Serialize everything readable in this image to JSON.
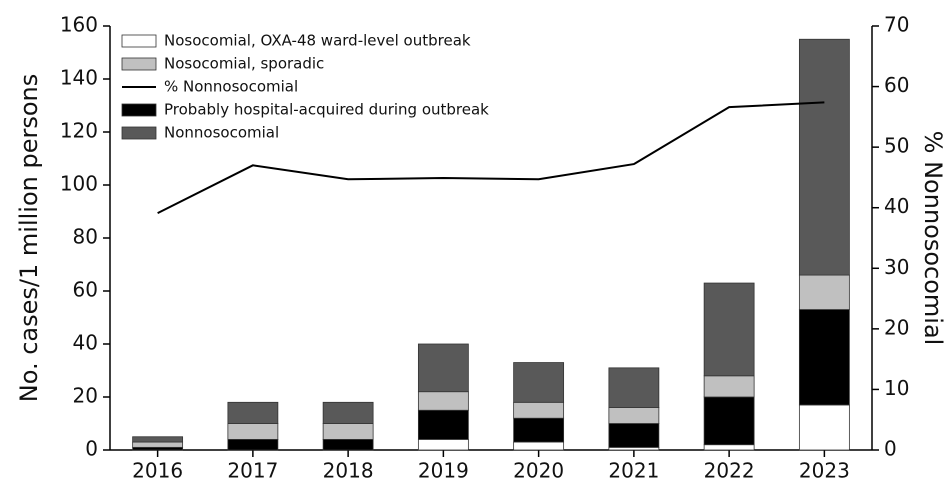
{
  "chart_data": {
    "type": "bar",
    "categories": [
      "2016",
      "2017",
      "2018",
      "2019",
      "2020",
      "2021",
      "2022",
      "2023"
    ],
    "series": [
      {
        "name": "Nosocomial, OXA-48 ward-level outbreak",
        "color": "#ffffff",
        "values": [
          0,
          0,
          0,
          4,
          3,
          1,
          2,
          17
        ]
      },
      {
        "name": "Nosocomial, sporadic",
        "color": "#c0c0c0",
        "values": [
          2,
          6,
          6,
          7,
          6,
          6,
          8,
          13
        ]
      },
      {
        "name": "% Nonnosocomial",
        "type": "line",
        "axis": "y2",
        "color": "#000000",
        "values": [
          39.1,
          47,
          44.7,
          44.9,
          44.7,
          47.2,
          56.6,
          57.4
        ]
      },
      {
        "name": "Probably hospital-acquired during outbreak",
        "color": "#000000",
        "values": [
          1,
          4,
          4,
          11,
          9,
          9,
          18,
          36
        ]
      },
      {
        "name": "Nonnosocomial",
        "color": "#595959",
        "values": [
          2,
          8,
          8,
          18,
          15,
          15,
          35,
          89
        ]
      }
    ],
    "ylabel": "No. cases/1 million persons",
    "y2label": "% Nonnosocomial",
    "ylim": [
      0,
      160
    ],
    "yticks": [
      0,
      20,
      40,
      60,
      80,
      100,
      120,
      140,
      160
    ],
    "y2lim": [
      0,
      70
    ],
    "y2ticks": [
      0,
      10,
      20,
      30,
      40,
      50,
      60,
      70
    ]
  }
}
